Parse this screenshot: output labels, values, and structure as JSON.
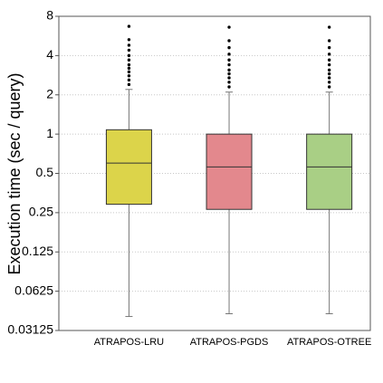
{
  "chart_data": {
    "type": "boxplot",
    "title": "",
    "xlabel": "",
    "ylabel": "Execution time (sec / query)",
    "yscale": "log2",
    "ylim": [
      0.03125,
      8
    ],
    "yticks": [
      0.03125,
      0.0625,
      0.125,
      0.25,
      0.5,
      1,
      2,
      4,
      8
    ],
    "ytick_labels": [
      "0.03125",
      "0.0625",
      "0.125",
      "0.25",
      "0.5",
      "1",
      "2",
      "4",
      "8"
    ],
    "grid": "horizontal-dotted",
    "categories": [
      "ATRAPOS-LRU",
      "ATRAPOS-PGDS",
      "ATRAPOS-OTREE"
    ],
    "boxes": [
      {
        "name": "ATRAPOS-LRU",
        "color": "#dcd44a",
        "whisker_low": 0.04,
        "q1": 0.29,
        "median": 0.6,
        "q3": 1.08,
        "whisker_high": 2.2,
        "outliers": [
          2.4,
          2.6,
          2.8,
          3.0,
          3.2,
          3.4,
          3.7,
          4.0,
          4.4,
          4.8,
          5.3,
          6.7
        ]
      },
      {
        "name": "ATRAPOS-PGDS",
        "color": "#e3888d",
        "whisker_low": 0.042,
        "q1": 0.265,
        "median": 0.56,
        "q3": 1.0,
        "whisker_high": 2.1,
        "outliers": [
          2.3,
          2.5,
          2.7,
          2.9,
          3.1,
          3.4,
          3.7,
          4.1,
          4.6,
          5.2,
          6.6
        ]
      },
      {
        "name": "ATRAPOS-OTREE",
        "color": "#a9cf85",
        "whisker_low": 0.042,
        "q1": 0.265,
        "median": 0.56,
        "q3": 1.0,
        "whisker_high": 2.1,
        "outliers": [
          2.3,
          2.5,
          2.7,
          2.9,
          3.1,
          3.4,
          3.7,
          4.1,
          4.6,
          5.2,
          6.6
        ]
      }
    ]
  }
}
